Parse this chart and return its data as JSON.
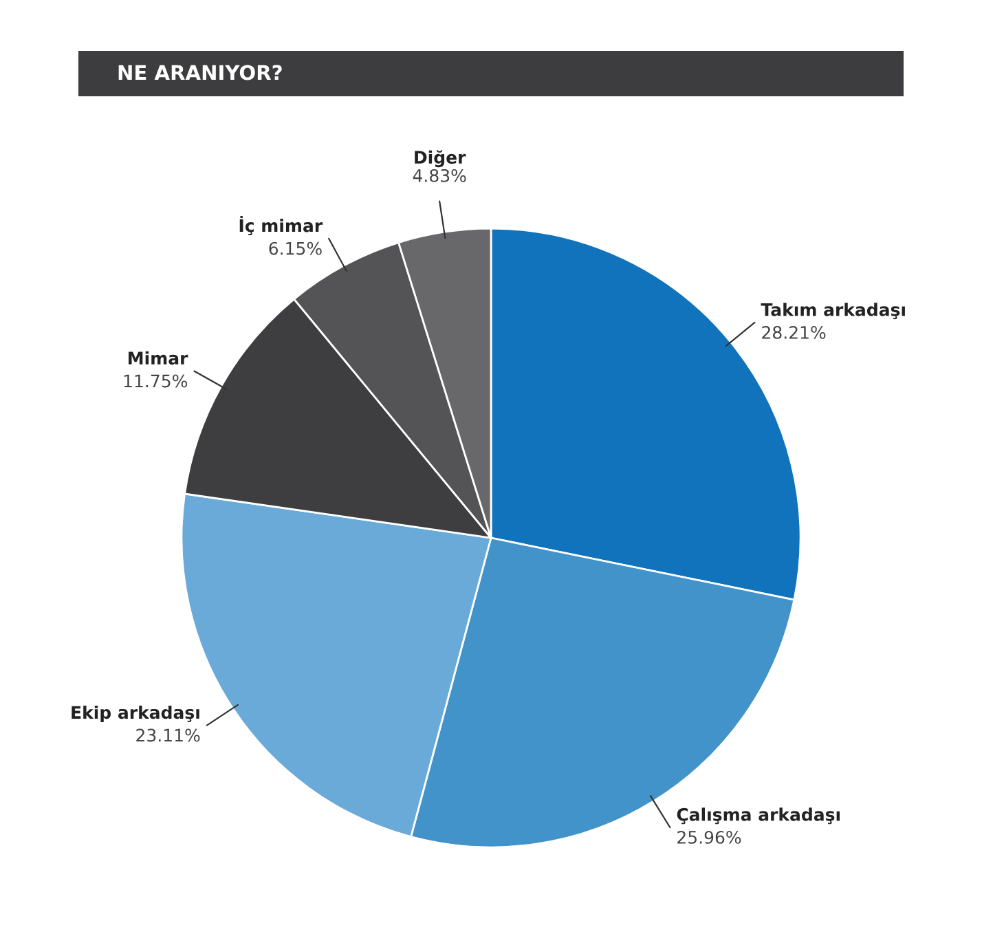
{
  "chart_data": {
    "type": "pie",
    "title": "NE ARANIYOR?",
    "categories": [
      "Takım arkadaşı",
      "Çalışma arkadaşı",
      "Ekip arkadaşı",
      "Mimar",
      "İç mimar",
      "Diğer"
    ],
    "values": [
      28.21,
      25.96,
      23.11,
      11.75,
      6.15,
      4.83
    ],
    "colors": [
      "#1173bb",
      "#4393cb",
      "#6aaad8",
      "#3e3d3f",
      "#545456",
      "#68686a"
    ],
    "value_labels": [
      "28.21%",
      "25.96%",
      "23.11%",
      "11.75%",
      "6.15%",
      "4.83%"
    ]
  }
}
